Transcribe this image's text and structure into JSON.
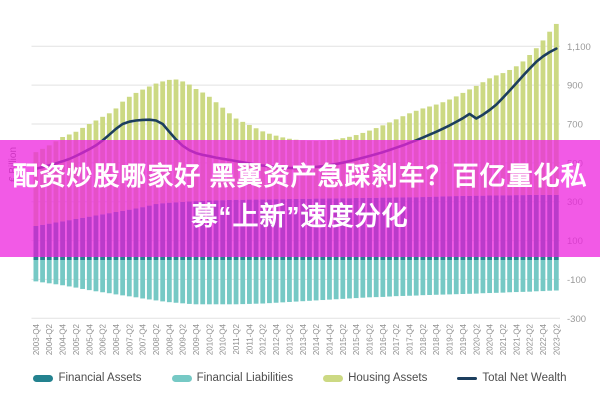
{
  "title_overlay": {
    "line1": "配资炒股哪家好 黑翼资产急踩刹车？百亿量化私",
    "line2": "募“上新”速度分化",
    "text_color": "#ffffff",
    "band_color_rgba": "rgba(238,35,222,0.75)"
  },
  "chart_data": {
    "type": "bar",
    "subtype": "stacked-bars-with-line",
    "title": "",
    "unit_label": "€ Billion",
    "x_start": "2003-Q4",
    "x_end": "2023-Q2",
    "x_frequency": "quarterly",
    "grid": true,
    "legend_position": "bottom",
    "ylim": [
      -300,
      1250
    ],
    "yticks": [
      {
        "label": "1,100",
        "value": 1100
      },
      {
        "label": "900",
        "value": 900
      },
      {
        "label": "700",
        "value": 700
      },
      {
        "label": "500",
        "value": 500
      },
      {
        "label": "300",
        "value": 300
      },
      {
        "label": "100",
        "value": 100
      },
      {
        "label": "-100",
        "value": -100
      },
      {
        "label": "-300",
        "value": -300
      }
    ],
    "x_tick_labels": [
      "2003-Q4",
      "2004-Q2",
      "2004-Q4",
      "2005-Q2",
      "2005-Q4",
      "2006-Q2",
      "2006-Q4",
      "2007-Q2",
      "2007-Q4",
      "2008-Q2",
      "2008-Q4",
      "2009-Q2",
      "2009-Q4",
      "2010-Q2",
      "2010-Q4",
      "2011-Q2",
      "2011-Q4",
      "2012-Q2",
      "2012-Q4",
      "2013-Q2",
      "2013-Q4",
      "2014-Q2",
      "2014-Q4",
      "2015-Q2",
      "2015-Q4",
      "2016-Q2",
      "2016-Q4",
      "2017-Q2",
      "2017-Q4",
      "2018-Q2",
      "2018-Q4",
      "2019-Q2",
      "2019-Q4",
      "2020-Q2",
      "2020-Q4",
      "2021-Q2",
      "2021-Q4",
      "2022-Q2",
      "2022-Q4",
      "2023-Q2"
    ],
    "series": [
      {
        "name": "Financial Assets",
        "type": "bar",
        "stack": "positive",
        "color": "#23828f",
        "values": [
          175,
          181,
          187,
          193,
          199,
          205,
          211,
          217,
          223,
          229,
          235,
          241,
          247,
          253,
          259,
          265,
          272,
          280,
          288,
          292,
          295,
          297,
          299,
          301,
          303,
          305,
          306,
          307,
          308,
          309,
          310,
          310,
          311,
          311,
          312,
          312,
          313,
          313,
          314,
          314,
          315,
          315,
          316,
          316,
          317,
          317,
          318,
          318,
          319,
          319,
          320,
          320,
          321,
          321,
          322,
          322,
          323,
          323,
          324,
          325,
          326,
          327,
          328,
          329,
          330,
          330,
          331,
          331,
          332,
          332,
          333,
          333,
          334,
          334,
          335,
          335,
          335,
          335,
          335
        ]
      },
      {
        "name": "Financial Liabilities",
        "type": "bar",
        "stack": "negative",
        "color": "#76c9c5",
        "values": [
          -110,
          -115,
          -120,
          -125,
          -130,
          -136,
          -142,
          -149,
          -155,
          -161,
          -166,
          -171,
          -177,
          -182,
          -187,
          -192,
          -198,
          -203,
          -208,
          -213,
          -217,
          -220,
          -223,
          -226,
          -228,
          -228,
          -228,
          -228,
          -228,
          -228,
          -228,
          -227,
          -226,
          -225,
          -224,
          -222,
          -220,
          -218,
          -216,
          -214,
          -212,
          -210,
          -208,
          -206,
          -204,
          -202,
          -200,
          -198,
          -196,
          -194,
          -192,
          -191,
          -190,
          -188,
          -186,
          -185,
          -184,
          -183,
          -181,
          -180,
          -179,
          -178,
          -177,
          -176,
          -175,
          -174,
          -173,
          -171,
          -170,
          -169,
          -168,
          -166,
          -165,
          -164,
          -163,
          -161,
          -160,
          -158,
          -157
        ]
      },
      {
        "name": "Housing Assets",
        "type": "bar",
        "stack": "positive",
        "color": "#ccd983",
        "values": [
          380,
          391,
          403,
          418,
          434,
          441,
          449,
          463,
          477,
          489,
          502,
          514,
          533,
          562,
          581,
          595,
          605,
          613,
          620,
          627,
          632,
          632,
          620,
          602,
          577,
          557,
          534,
          505,
          476,
          446,
          418,
          401,
          384,
          367,
          350,
          338,
          327,
          318,
          310,
          305,
          301,
          299,
          297,
          298,
          300,
          304,
          309,
          316,
          324,
          335,
          346,
          359,
          372,
          387,
          402,
          418,
          432,
          445,
          456,
          465,
          474,
          485,
          498,
          513,
          530,
          548,
          565,
          584,
          603,
          618,
          629,
          645,
          663,
          688,
          720,
          755,
          795,
          840,
          880
        ]
      },
      {
        "name": "Total Net Wealth",
        "type": "line",
        "color": "#1c3e5e",
        "values": [
          470,
          478,
          487,
          497,
          508,
          520,
          535,
          552,
          570,
          590,
          615,
          645,
          675,
          700,
          712,
          718,
          721,
          722,
          718,
          700,
          660,
          620,
          588,
          565,
          550,
          541,
          534,
          527,
          521,
          515,
          509,
          503,
          497,
          491,
          486,
          482,
          478,
          476,
          474,
          473,
          474,
          476,
          479,
          483,
          488,
          494,
          501,
          509,
          517,
          526,
          535,
          545,
          555,
          566,
          578,
          590,
          603,
          616,
          630,
          645,
          660,
          676,
          693,
          711,
          730,
          752,
          728,
          748,
          772,
          800,
          835,
          872,
          910,
          948,
          985,
          1020,
          1048,
          1070,
          1088
        ]
      }
    ]
  }
}
